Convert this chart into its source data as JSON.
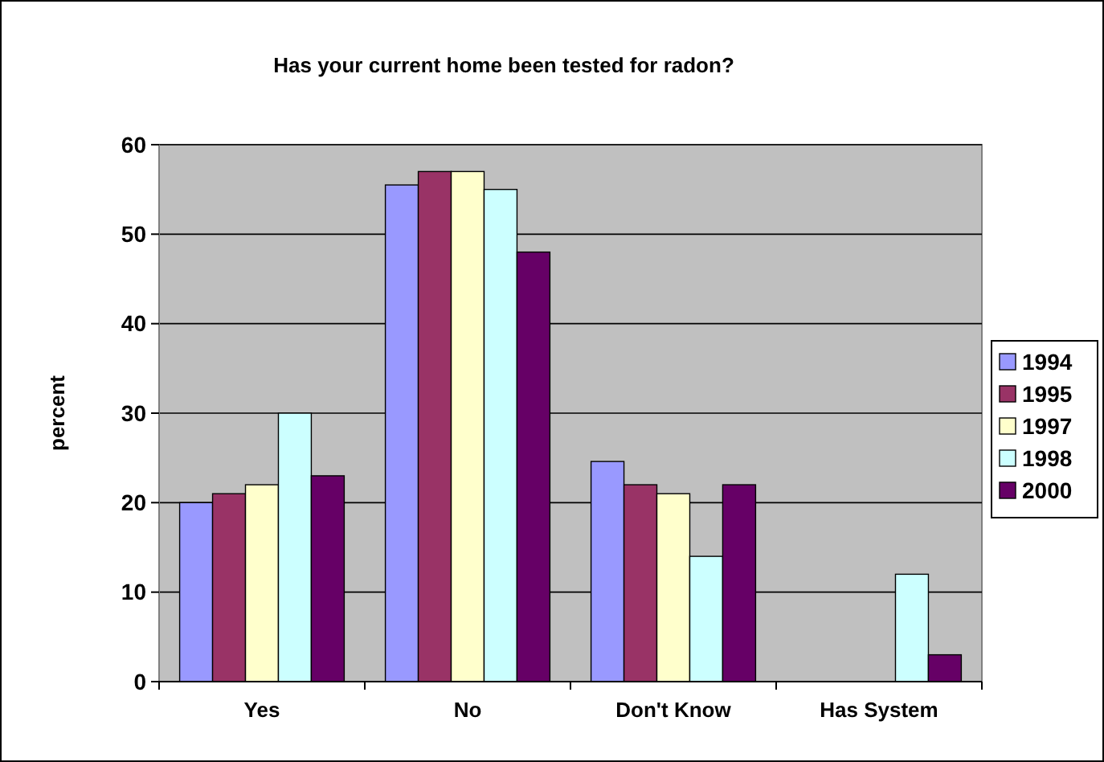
{
  "chart_data": {
    "type": "bar",
    "title": "Has your current home been tested for radon?",
    "ylabel": "percent",
    "categories": [
      "Yes",
      "No",
      "Don't Know",
      "Has System"
    ],
    "series": [
      {
        "name": "1994",
        "color": "#9999ff",
        "values": [
          20,
          55.5,
          24.6,
          null
        ]
      },
      {
        "name": "1995",
        "color": "#993366",
        "values": [
          21,
          57,
          22,
          null
        ]
      },
      {
        "name": "1997",
        "color": "#ffffcc",
        "values": [
          22,
          57,
          21,
          null
        ]
      },
      {
        "name": "1998",
        "color": "#ccffff",
        "values": [
          30,
          55,
          14,
          12
        ]
      },
      {
        "name": "2000",
        "color": "#660066",
        "values": [
          23,
          48,
          22,
          3
        ]
      }
    ],
    "ylim": [
      0,
      60
    ],
    "yticks": [
      0,
      10,
      20,
      30,
      40,
      50,
      60
    ],
    "grid": "y",
    "legend": "right"
  }
}
